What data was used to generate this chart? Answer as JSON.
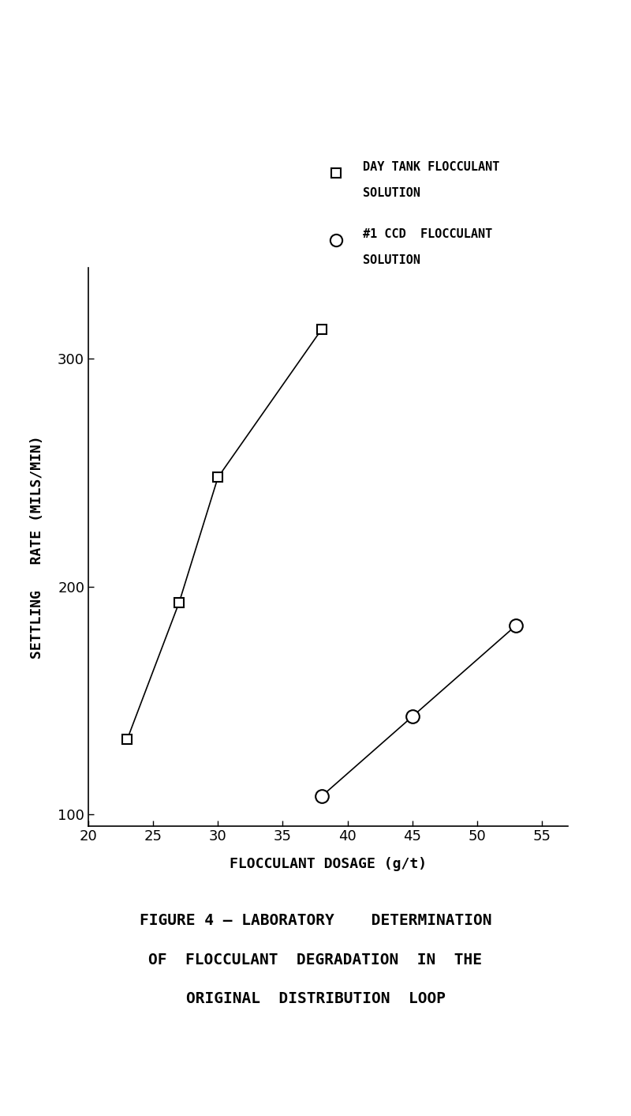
{
  "series1_name": "DAY TANK FLOCCULANT\nSOLUTION",
  "series2_name": "#1 CCD  FLOCCULANT\nSOLUTION",
  "series1_x": [
    23,
    27,
    30,
    38
  ],
  "series1_y": [
    133,
    193,
    248,
    313
  ],
  "series2_x": [
    38,
    45,
    53
  ],
  "series2_y": [
    108,
    143,
    183
  ],
  "xlabel": "FLOCCULANT DOSAGE (g/t)",
  "ylabel": "SETTLING   RATE (MILS/MIN)",
  "xlim": [
    20,
    57
  ],
  "ylim": [
    95,
    340
  ],
  "xticks": [
    20,
    25,
    30,
    35,
    40,
    45,
    50,
    55
  ],
  "yticks": [
    100,
    200,
    300
  ],
  "title_line1": "FIGURE 4 – LABORATORY    DETERMINATION",
  "title_line2": "OF  FLOCCULANT  DEGRADATION  IN  THE",
  "title_line3": "ORIGINAL  DISTRIBUTION  LOOP",
  "background_color": "#ffffff",
  "marker_size": 9,
  "line_color": "#000000",
  "legend_square_label_line1": "DAY TANK FLOCCULANT",
  "legend_square_label_line2": "SOLUTION",
  "legend_circle_label_line1": "#1 CCD  FLOCCULANT",
  "legend_circle_label_line2": "SOLUTION"
}
